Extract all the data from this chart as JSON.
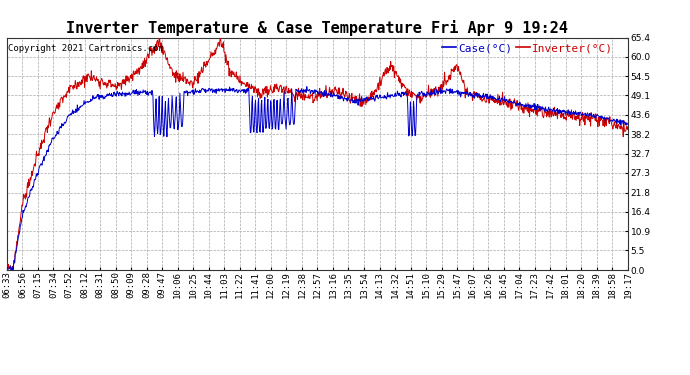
{
  "title": "Inverter Temperature & Case Temperature Fri Apr 9 19:24",
  "copyright": "Copyright 2021 Cartronics.com",
  "legend_case": "Case(°C)",
  "legend_inverter": "Inverter(°C)",
  "case_color": "#0000cc",
  "inverter_color": "#cc0000",
  "background_color": "#ffffff",
  "grid_color": "#aaaaaa",
  "ylim": [
    0.0,
    65.4
  ],
  "yticks": [
    0.0,
    5.5,
    10.9,
    16.4,
    21.8,
    27.3,
    32.7,
    38.2,
    43.6,
    49.1,
    54.5,
    60.0,
    65.4
  ],
  "xtick_labels": [
    "06:33",
    "06:56",
    "07:15",
    "07:34",
    "07:52",
    "08:12",
    "08:31",
    "08:50",
    "09:09",
    "09:28",
    "09:47",
    "10:06",
    "10:25",
    "10:44",
    "11:03",
    "11:22",
    "11:41",
    "12:00",
    "12:19",
    "12:38",
    "12:57",
    "13:16",
    "13:35",
    "13:54",
    "14:13",
    "14:32",
    "14:51",
    "15:10",
    "15:29",
    "15:47",
    "16:07",
    "16:26",
    "16:45",
    "17:04",
    "17:23",
    "17:42",
    "18:01",
    "18:20",
    "18:39",
    "18:58",
    "19:17"
  ],
  "title_fontsize": 11,
  "axis_fontsize": 6.5,
  "legend_fontsize": 8,
  "copyright_fontsize": 6.5,
  "figsize": [
    6.9,
    3.75
  ],
  "dpi": 100
}
